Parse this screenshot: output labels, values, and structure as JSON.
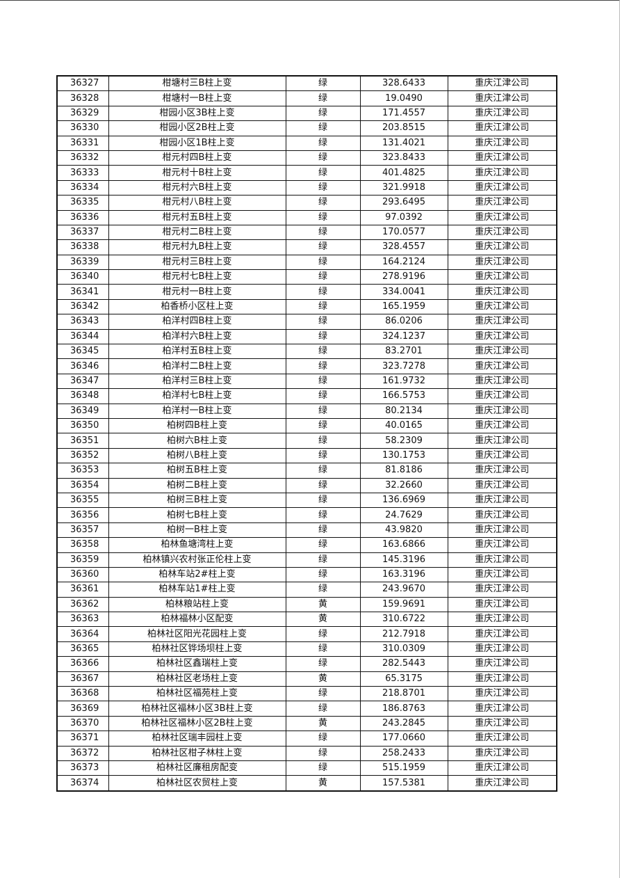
{
  "table": {
    "rows": [
      [
        "36327",
        "柑塘村三B柱上变",
        "绿",
        "328.6433",
        "重庆江津公司"
      ],
      [
        "36328",
        "柑塘村一B柱上变",
        "绿",
        "19.0490",
        "重庆江津公司"
      ],
      [
        "36329",
        "柑园小区3B柱上变",
        "绿",
        "171.4557",
        "重庆江津公司"
      ],
      [
        "36330",
        "柑园小区2B柱上变",
        "绿",
        "203.8515",
        "重庆江津公司"
      ],
      [
        "36331",
        "柑园小区1B柱上变",
        "绿",
        "131.4021",
        "重庆江津公司"
      ],
      [
        "36332",
        "柑元村四B柱上变",
        "绿",
        "323.8433",
        "重庆江津公司"
      ],
      [
        "36333",
        "柑元村十B柱上变",
        "绿",
        "401.4825",
        "重庆江津公司"
      ],
      [
        "36334",
        "柑元村六B柱上变",
        "绿",
        "321.9918",
        "重庆江津公司"
      ],
      [
        "36335",
        "柑元村八B柱上变",
        "绿",
        "293.6495",
        "重庆江津公司"
      ],
      [
        "36336",
        "柑元村五B柱上变",
        "绿",
        "97.0392",
        "重庆江津公司"
      ],
      [
        "36337",
        "柑元村二B柱上变",
        "绿",
        "170.0577",
        "重庆江津公司"
      ],
      [
        "36338",
        "柑元村九B柱上变",
        "绿",
        "328.4557",
        "重庆江津公司"
      ],
      [
        "36339",
        "柑元村三B柱上变",
        "绿",
        "164.2124",
        "重庆江津公司"
      ],
      [
        "36340",
        "柑元村七B柱上变",
        "绿",
        "278.9196",
        "重庆江津公司"
      ],
      [
        "36341",
        "柑元村一B柱上变",
        "绿",
        "334.0041",
        "重庆江津公司"
      ],
      [
        "36342",
        "柏香桥小区柱上变",
        "绿",
        "165.1959",
        "重庆江津公司"
      ],
      [
        "36343",
        "柏洋村四B柱上变",
        "绿",
        "86.0206",
        "重庆江津公司"
      ],
      [
        "36344",
        "柏洋村六B柱上变",
        "绿",
        "324.1237",
        "重庆江津公司"
      ],
      [
        "36345",
        "柏洋村五B柱上变",
        "绿",
        "83.2701",
        "重庆江津公司"
      ],
      [
        "36346",
        "柏洋村二B柱上变",
        "绿",
        "323.7278",
        "重庆江津公司"
      ],
      [
        "36347",
        "柏洋村三B柱上变",
        "绿",
        "161.9732",
        "重庆江津公司"
      ],
      [
        "36348",
        "柏洋村七B柱上变",
        "绿",
        "166.5753",
        "重庆江津公司"
      ],
      [
        "36349",
        "柏洋村一B柱上变",
        "绿",
        "80.2134",
        "重庆江津公司"
      ],
      [
        "36350",
        "柏树四B柱上变",
        "绿",
        "40.0165",
        "重庆江津公司"
      ],
      [
        "36351",
        "柏树六B柱上变",
        "绿",
        "58.2309",
        "重庆江津公司"
      ],
      [
        "36352",
        "柏树八B柱上变",
        "绿",
        "130.1753",
        "重庆江津公司"
      ],
      [
        "36353",
        "柏树五B柱上变",
        "绿",
        "81.8186",
        "重庆江津公司"
      ],
      [
        "36354",
        "柏树二B柱上变",
        "绿",
        "32.2660",
        "重庆江津公司"
      ],
      [
        "36355",
        "柏树三B柱上变",
        "绿",
        "136.6969",
        "重庆江津公司"
      ],
      [
        "36356",
        "柏树七B柱上变",
        "绿",
        "24.7629",
        "重庆江津公司"
      ],
      [
        "36357",
        "柏树一B柱上变",
        "绿",
        "43.9820",
        "重庆江津公司"
      ],
      [
        "36358",
        "柏林鱼塘湾柱上变",
        "绿",
        "163.6866",
        "重庆江津公司"
      ],
      [
        "36359",
        "柏林镇兴农村张正伦柱上变",
        "绿",
        "145.3196",
        "重庆江津公司"
      ],
      [
        "36360",
        "柏林车站2#柱上变",
        "绿",
        "163.3196",
        "重庆江津公司"
      ],
      [
        "36361",
        "柏林车站1#柱上变",
        "绿",
        "243.9670",
        "重庆江津公司"
      ],
      [
        "36362",
        "柏林粮站柱上变",
        "黄",
        "159.9691",
        "重庆江津公司"
      ],
      [
        "36363",
        "柏林福林小区配变",
        "黄",
        "310.6722",
        "重庆江津公司"
      ],
      [
        "36364",
        "柏林社区阳光花园柱上变",
        "绿",
        "212.7918",
        "重庆江津公司"
      ],
      [
        "36365",
        "柏林社区铧场坝柱上变",
        "绿",
        "310.0309",
        "重庆江津公司"
      ],
      [
        "36366",
        "柏林社区鑫瑞柱上变",
        "绿",
        "282.5443",
        "重庆江津公司"
      ],
      [
        "36367",
        "柏林社区老场柱上变",
        "黄",
        "65.3175",
        "重庆江津公司"
      ],
      [
        "36368",
        "柏林社区福苑柱上变",
        "绿",
        "218.8701",
        "重庆江津公司"
      ],
      [
        "36369",
        "柏林社区福林小区3B柱上变",
        "绿",
        "186.8763",
        "重庆江津公司"
      ],
      [
        "36370",
        "柏林社区福林小区2B柱上变",
        "黄",
        "243.2845",
        "重庆江津公司"
      ],
      [
        "36371",
        "柏林社区瑞丰园柱上变",
        "绿",
        "177.0660",
        "重庆江津公司"
      ],
      [
        "36372",
        "柏林社区柑子林柱上变",
        "绿",
        "258.2433",
        "重庆江津公司"
      ],
      [
        "36373",
        "柏林社区廉租房配变",
        "绿",
        "515.1959",
        "重庆江津公司"
      ],
      [
        "36374",
        "柏林社区农贸柱上变",
        "黄",
        "157.5381",
        "重庆江津公司"
      ]
    ]
  }
}
